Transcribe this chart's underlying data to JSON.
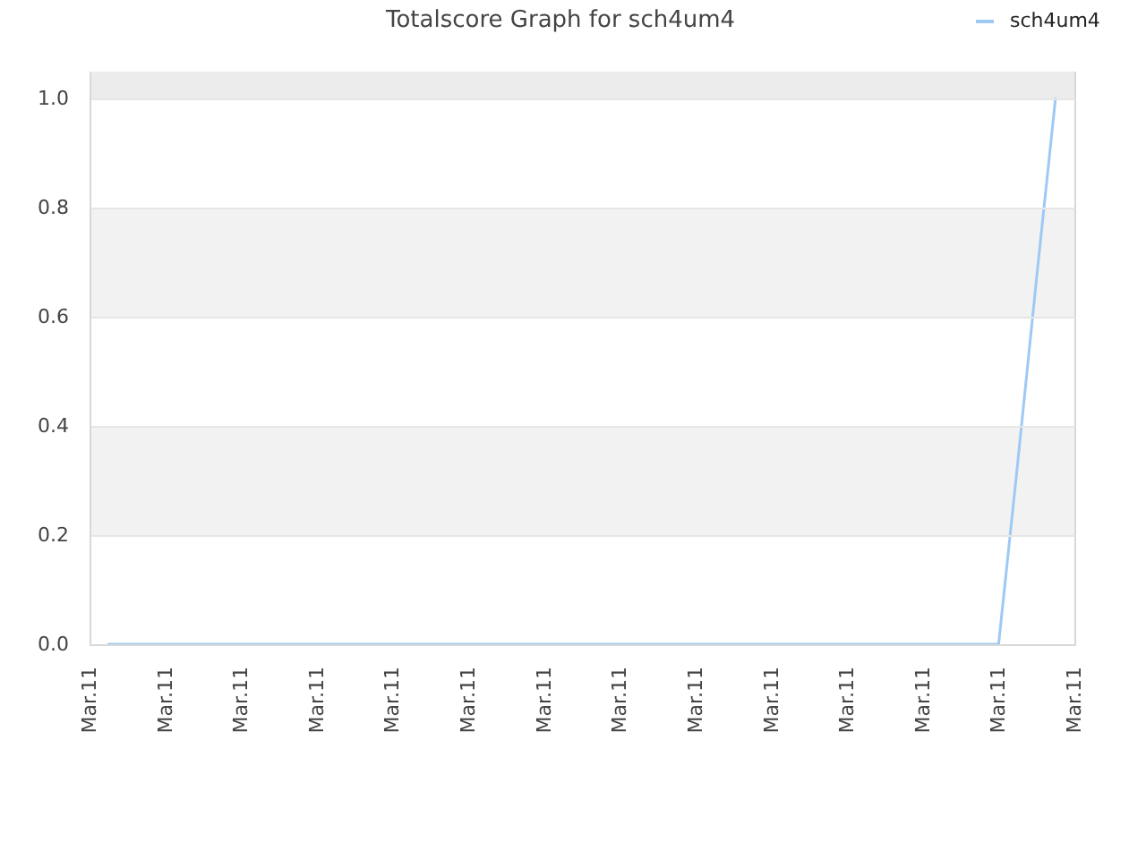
{
  "chart_data": {
    "type": "line",
    "title": "Totalscore Graph for sch4um4",
    "categories": [
      "Mar.11",
      null,
      null,
      null,
      "Mar.11",
      null,
      null,
      null,
      "Mar.11",
      null,
      null,
      null,
      "Mar.11",
      null,
      null,
      null,
      "Mar.11",
      null,
      null,
      null,
      "Mar.11",
      null,
      null,
      null,
      "Mar.11",
      null,
      null,
      null,
      "Mar.11",
      null,
      null,
      null,
      "Mar.11",
      null,
      null,
      null,
      "Mar.11",
      null,
      null,
      null,
      "Mar.11",
      null,
      null,
      null,
      "Mar.11",
      null,
      null,
      null,
      "Mar.11",
      null,
      null,
      null,
      "Mar.11"
    ],
    "series": [
      {
        "name": "sch4um4",
        "color": "#9ec9f5",
        "values": [
          null,
          0,
          0,
          0,
          0,
          0,
          0,
          0,
          0,
          0,
          0,
          0,
          0,
          0,
          0,
          0,
          0,
          0,
          0,
          0,
          0,
          0,
          0,
          0,
          0,
          0,
          0,
          0,
          0,
          0,
          0,
          0,
          0,
          0,
          0,
          0,
          0,
          0,
          0,
          0,
          0,
          0,
          0,
          0,
          0,
          0,
          0,
          0,
          0,
          0.33,
          0.67,
          1,
          null
        ]
      }
    ],
    "ylim": [
      0,
      1.05
    ],
    "yticks": [
      {
        "value": 0,
        "label": "0.0"
      },
      0.2,
      0.4,
      0.6,
      0.8,
      {
        "value": 1,
        "label": "1.0"
      }
    ],
    "bands": [
      {
        "axis": "y",
        "from": 0.2,
        "to": 0.4,
        "color": "#f2f2f2"
      },
      {
        "axis": "y",
        "from": 0.6,
        "to": 0.8,
        "color": "#f2f2f2"
      },
      {
        "axis": "y",
        "from": 1,
        "to": 1.05,
        "color": "#ececec"
      }
    ],
    "grid": "y",
    "legend": "top right",
    "line_style": "solid"
  }
}
